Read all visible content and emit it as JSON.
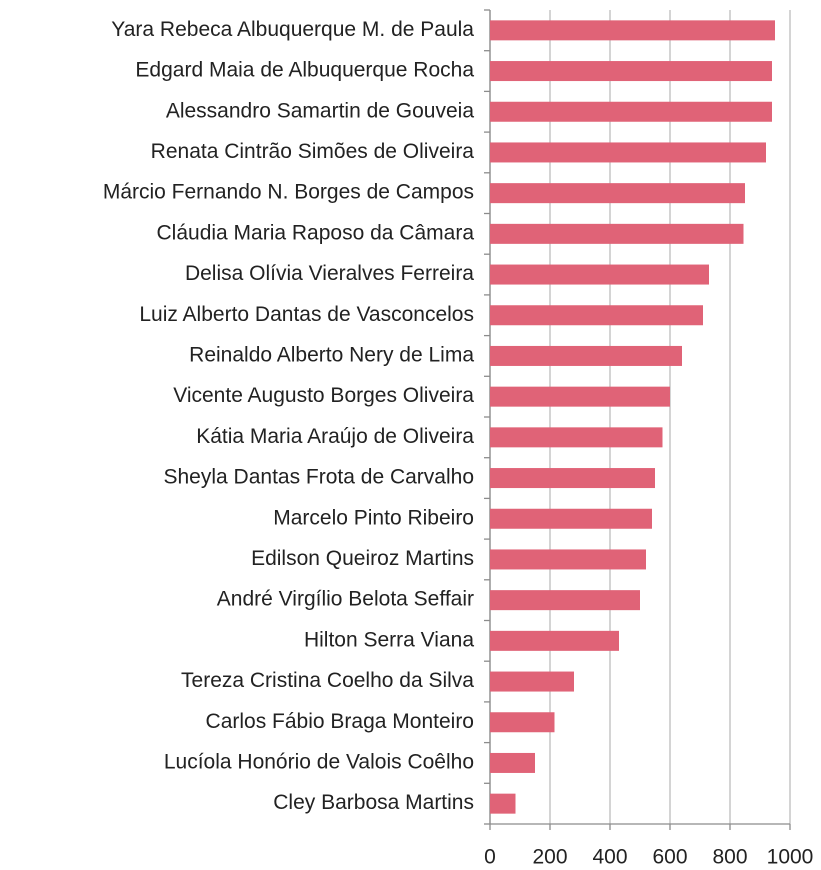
{
  "chart_data": {
    "type": "barh",
    "categories": [
      "Yara Rebeca Albuquerque M. de Paula",
      "Edgard Maia de Albuquerque Rocha",
      "Alessandro Samartin de Gouveia",
      "Renata Cintrão Simões de Oliveira",
      "Márcio Fernando N. Borges de Campos",
      "Cláudia Maria Raposo da Câmara",
      "Delisa Olívia Vieralves Ferreira",
      "Luiz Alberto Dantas de Vasconcelos",
      "Reinaldo Alberto Nery de Lima",
      "Vicente Augusto Borges Oliveira",
      "Kátia Maria Araújo de Oliveira",
      "Sheyla Dantas Frota de Carvalho",
      "Marcelo Pinto Ribeiro",
      "Edilson Queiroz Martins",
      "André Virgílio Belota Seffair",
      "Hilton Serra Viana",
      "Tereza Cristina Coelho da Silva",
      "Carlos Fábio Braga Monteiro",
      "Lucíola Honório de Valois Coêlho",
      "Cley Barbosa Martins"
    ],
    "values": [
      950,
      940,
      940,
      920,
      850,
      845,
      730,
      710,
      640,
      600,
      575,
      550,
      540,
      520,
      500,
      430,
      280,
      215,
      150,
      85
    ],
    "color": "#e06377",
    "xlim": [
      0,
      1000
    ],
    "xticks": [
      0,
      200,
      400,
      600,
      800,
      1000
    ],
    "grid": true
  }
}
